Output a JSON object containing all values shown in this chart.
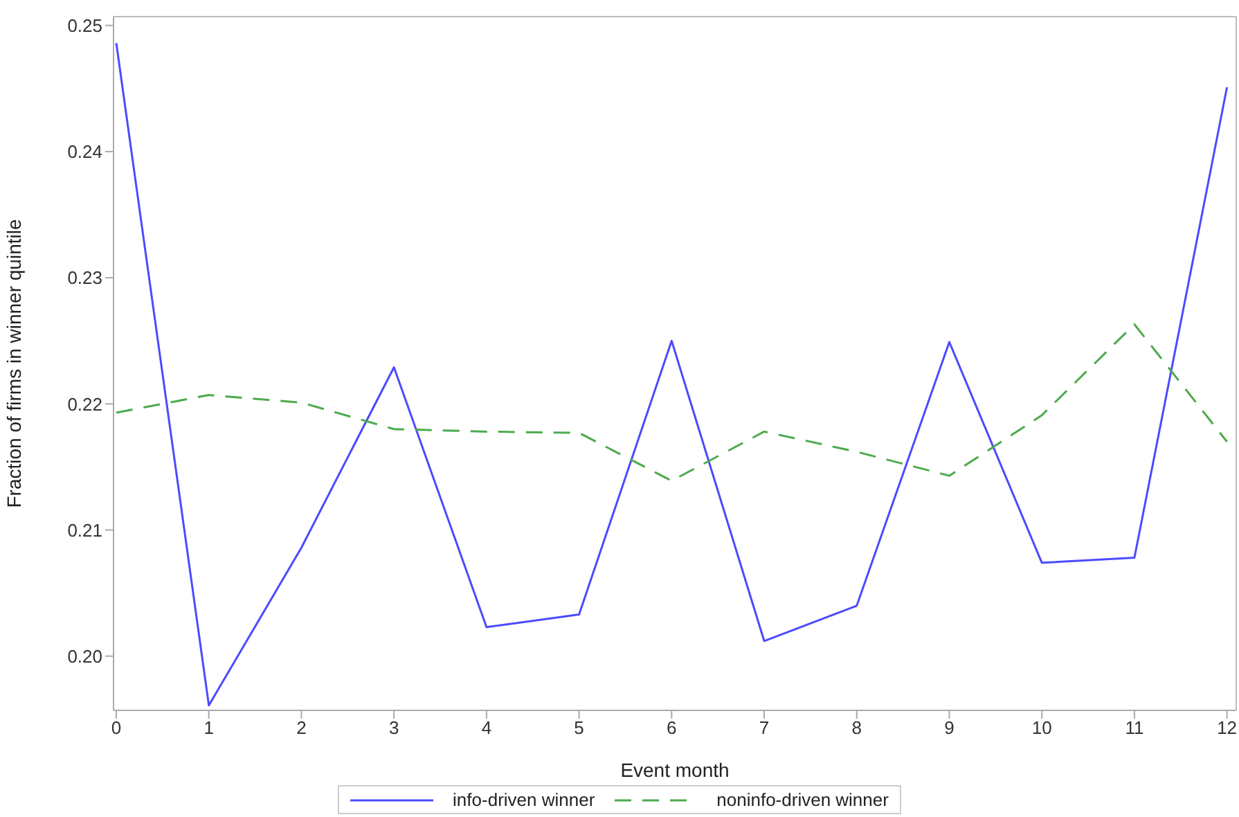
{
  "chart_data": {
    "type": "line",
    "xlabel": "Event month",
    "ylabel": "Fraction of firms in winner quintile",
    "x": [
      0,
      1,
      2,
      3,
      4,
      5,
      6,
      7,
      8,
      9,
      10,
      11,
      12
    ],
    "xlim": [
      -0.03,
      12.1
    ],
    "xticks": [
      0,
      1,
      2,
      3,
      4,
      5,
      6,
      7,
      8,
      9,
      10,
      11,
      12
    ],
    "ylim": [
      0.1957,
      0.2507
    ],
    "yticks": [
      {
        "value": 0.2,
        "label": "0.20"
      },
      0.21,
      0.22,
      0.23,
      0.24,
      0.25
    ],
    "legend": "bottom",
    "marker": "none",
    "series": [
      {
        "name": "info-driven winner",
        "color": "#4b4bff",
        "line_style": "solid",
        "values": [
          0.2486,
          0.1961,
          0.2086,
          0.2229,
          0.2023,
          0.2033,
          0.225,
          0.2012,
          0.204,
          0.2249,
          0.2074,
          0.2078,
          0.2451
        ]
      },
      {
        "name": "noninfo-driven winner",
        "color": "#4caa4c",
        "line_style": "dashed",
        "values": [
          0.2193,
          0.2207,
          0.2201,
          0.218,
          0.2178,
          0.2177,
          0.2139,
          0.2178,
          0.2162,
          0.2143,
          0.2191,
          0.2263,
          0.217
        ]
      }
    ]
  }
}
